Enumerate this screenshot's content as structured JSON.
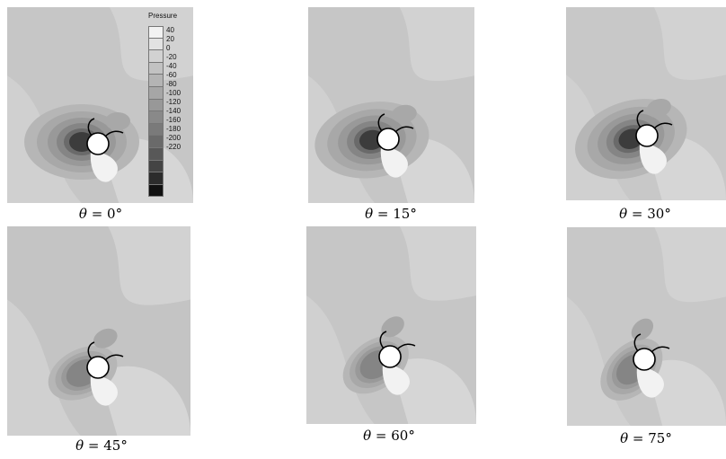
{
  "legend": {
    "title": "Pressure",
    "levels": [
      "40",
      "20",
      "0",
      "-20",
      "-40",
      "-60",
      "-80",
      "-100",
      "-120",
      "-140",
      "-160",
      "-180",
      "-200",
      "-220"
    ],
    "colors": [
      "#f2f2f2",
      "#e2e2e2",
      "#d2d2d2",
      "#c2c2c2",
      "#b4b4b4",
      "#a6a6a6",
      "#989898",
      "#898989",
      "#7a7a7a",
      "#6a6a6a",
      "#585858",
      "#444444",
      "#2c2c2c",
      "#111111"
    ]
  },
  "panels": [
    {
      "theta_symbol": "θ",
      "equals": " = ",
      "angle": "0°",
      "angle_deg": 0
    },
    {
      "theta_symbol": "θ",
      "equals": " = ",
      "angle": "15°",
      "angle_deg": 15
    },
    {
      "theta_symbol": "θ",
      "equals": " = ",
      "angle": "30°",
      "angle_deg": 30
    },
    {
      "theta_symbol": "θ",
      "equals": " = ",
      "angle": "45°",
      "angle_deg": 45
    },
    {
      "theta_symbol": "θ",
      "equals": " = ",
      "angle": "60°",
      "angle_deg": 60
    },
    {
      "theta_symbol": "θ",
      "equals": " = ",
      "angle": "75°",
      "angle_deg": 75
    }
  ]
}
